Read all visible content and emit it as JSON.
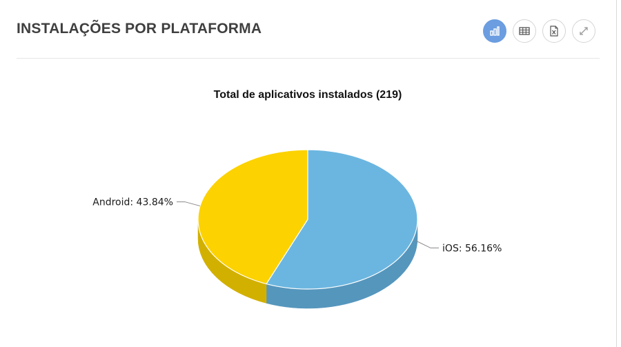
{
  "panel": {
    "title": "INSTALAÇÕES POR PLATAFORMA"
  },
  "toolbar": {
    "buttons": [
      {
        "icon": "bar-chart-icon",
        "active": true
      },
      {
        "icon": "table-icon",
        "active": false
      },
      {
        "icon": "excel-export-icon",
        "active": false
      },
      {
        "icon": "expand-icon",
        "active": false
      }
    ],
    "active_color": "#6b9de0"
  },
  "chart_data": {
    "type": "pie",
    "subtype": "3d",
    "title": "Total de aplicativos instalados (219)",
    "slices": [
      {
        "name": "iOS",
        "value": 56.16,
        "label": "iOS: 56.16%",
        "color": "#6bb6e0",
        "side_color": "#5596bd"
      },
      {
        "name": "Android",
        "value": 43.84,
        "label": "Android: 43.84%",
        "color": "#fcd200",
        "side_color": "#d2b000"
      }
    ]
  }
}
